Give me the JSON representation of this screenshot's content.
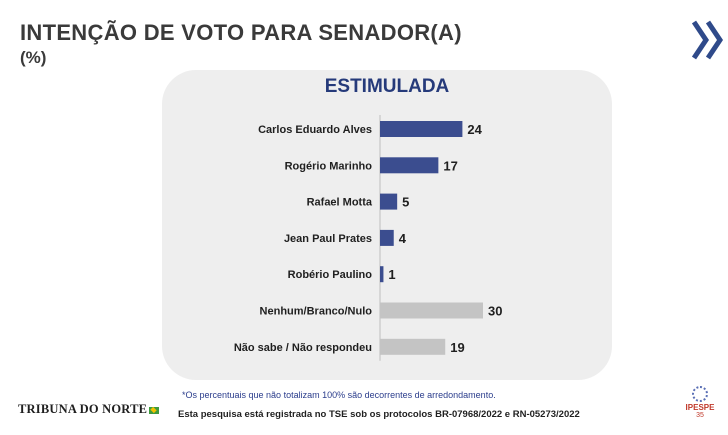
{
  "header": {
    "title": "INTENÇÃO DE VOTO PARA SENADOR(A)",
    "subtitle": "(%)"
  },
  "chart_data": {
    "type": "bar",
    "orientation": "horizontal",
    "title": "ESTIMULADA",
    "categories": [
      "Carlos Eduardo Alves",
      "Rogério Marinho",
      "Rafael Motta",
      "Jean Paul Prates",
      "Robério Paulino",
      "Nenhum/Branco/Nulo",
      "Não sabe / Não respondeu"
    ],
    "values": [
      24,
      17,
      5,
      4,
      1,
      30,
      19
    ],
    "value_labels": [
      "24",
      "17",
      "5",
      "4",
      "1",
      "30",
      "19"
    ],
    "colors": [
      "#3b4d8f",
      "#3b4d8f",
      "#3b4d8f",
      "#3b4d8f",
      "#3b4d8f",
      "#c4c4c4",
      "#c4c4c4"
    ],
    "xlabel": "",
    "ylabel": "",
    "xlim": [
      0,
      30
    ],
    "grid": false,
    "legend": "none"
  },
  "footer": {
    "footnote": "*Os percentuais que não totalizam 100% são decorrentes de arredondamento.",
    "registro": "Esta pesquisa está registrada no TSE sob os protocolos BR-07968/2022 e RN-05273/2022",
    "logo_left": "TRIBUNA DO NORTE",
    "logo_right_name": "IPESPE",
    "logo_right_number": "35"
  },
  "icons": {
    "nav": "double-chevron-right-icon"
  }
}
